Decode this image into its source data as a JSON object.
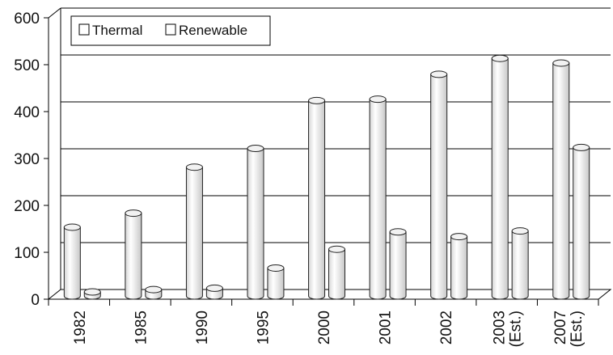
{
  "chart_data": {
    "type": "bar",
    "style": "3d-cylinder",
    "categories": [
      "1982",
      "1985",
      "1990",
      "1995",
      "2000",
      "2001",
      "2002",
      "2003 (Est.)",
      "2007 (Est.)"
    ],
    "category_lines": [
      [
        "1982"
      ],
      [
        "1985"
      ],
      [
        "1990"
      ],
      [
        "1995"
      ],
      [
        "2000"
      ],
      [
        "2001"
      ],
      [
        "2002"
      ],
      [
        "2003",
        "(Est.)"
      ],
      [
        "2007",
        "(Est.)"
      ]
    ],
    "series": [
      {
        "name": "Thermal",
        "values": [
          150,
          180,
          278,
          318,
          420,
          423,
          476,
          510,
          500
        ]
      },
      {
        "name": "Renewable",
        "values": [
          12,
          17,
          20,
          63,
          103,
          140,
          130,
          142,
          320
        ]
      }
    ],
    "ylim": [
      0,
      600
    ],
    "yticks": [
      0,
      100,
      200,
      300,
      400,
      500,
      600
    ],
    "grid": true,
    "legend_position": "top-left",
    "colors": {
      "bar_fill": "#f2f2f2",
      "bar_stroke": "#222222",
      "grid": "#000000"
    }
  }
}
